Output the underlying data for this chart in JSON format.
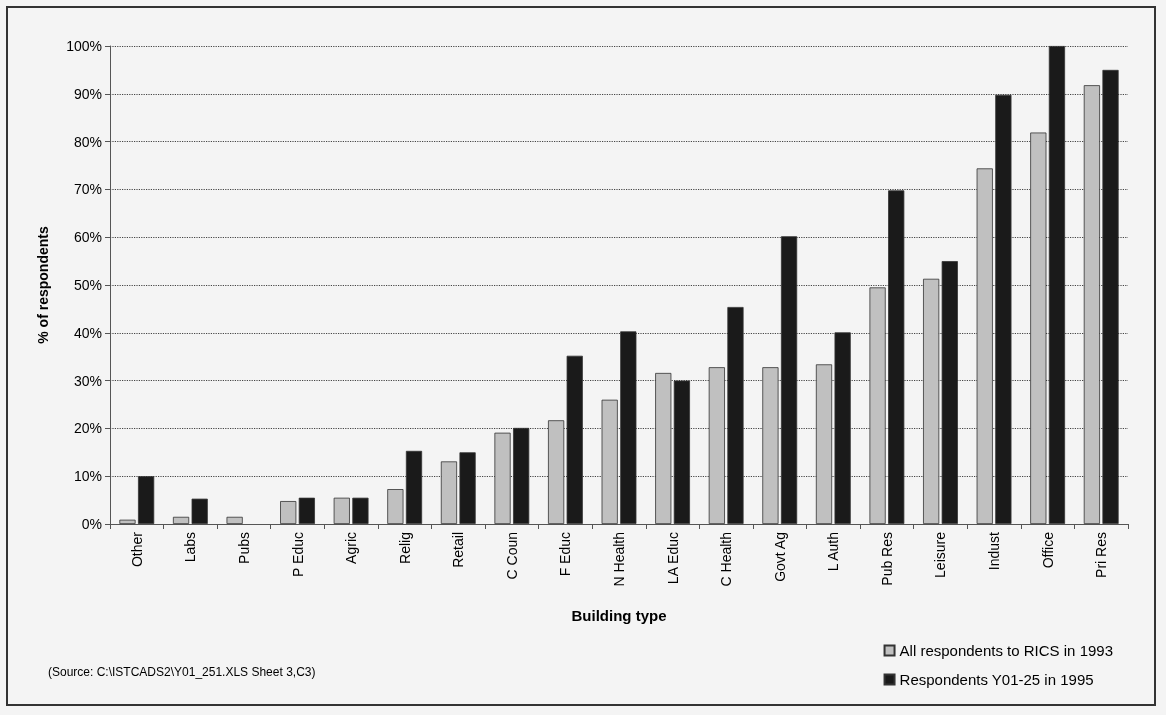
{
  "chart_data": {
    "type": "bar",
    "xlabel": "Building type",
    "ylabel": "% of respondents",
    "categories": [
      "Other",
      "Labs",
      "Pubs",
      "P Educ",
      "Agric",
      "Relig",
      "Retail",
      "C Coun",
      "F Educ",
      "N Health",
      "LA Educ",
      "C Health",
      "Govt Ag",
      "L Auth",
      "Pub Res",
      "Leisure",
      "Indust",
      "Office",
      "Pri Res"
    ],
    "series": [
      {
        "name": "All respondents to RICS in 1993",
        "color": "#c0c0c0",
        "values": [
          0.9,
          1.5,
          1.5,
          4.8,
          5.5,
          7.3,
          13.1,
          19.1,
          21.7,
          26.0,
          31.6,
          32.8,
          32.8,
          33.4,
          49.5,
          51.3,
          74.4,
          81.9,
          91.8
        ]
      },
      {
        "name": "Respondents Y01-25 in 1995",
        "color": "#1a1a1a",
        "values": [
          10,
          5.3,
          null,
          5.5,
          5.5,
          15.3,
          15,
          20.1,
          35.2,
          40.3,
          30,
          45.4,
          60.2,
          40.1,
          69.8,
          55,
          89.8,
          100,
          95
        ]
      }
    ],
    "ylim": [
      0,
      100
    ],
    "yticks": [
      {
        "value": 0,
        "label": "0%"
      },
      {
        "value": 10,
        "label": "10%"
      },
      {
        "value": 20,
        "label": "20%"
      },
      {
        "value": 30,
        "label": "30%"
      },
      {
        "value": 40,
        "label": "40%"
      },
      {
        "value": 50,
        "label": "50%"
      },
      {
        "value": 60,
        "label": "60%"
      },
      {
        "value": 70,
        "label": "70%"
      },
      {
        "value": 80,
        "label": "80%"
      },
      {
        "value": 90,
        "label": "90%"
      },
      {
        "value": 100,
        "label": "100%"
      }
    ],
    "grid": "y",
    "legend": "bottom right",
    "line_style": "dotted",
    "annotations": [
      "(Source: C:\\ISTCADS2\\Y01_251.XLS Sheet 3,C3)"
    ]
  }
}
